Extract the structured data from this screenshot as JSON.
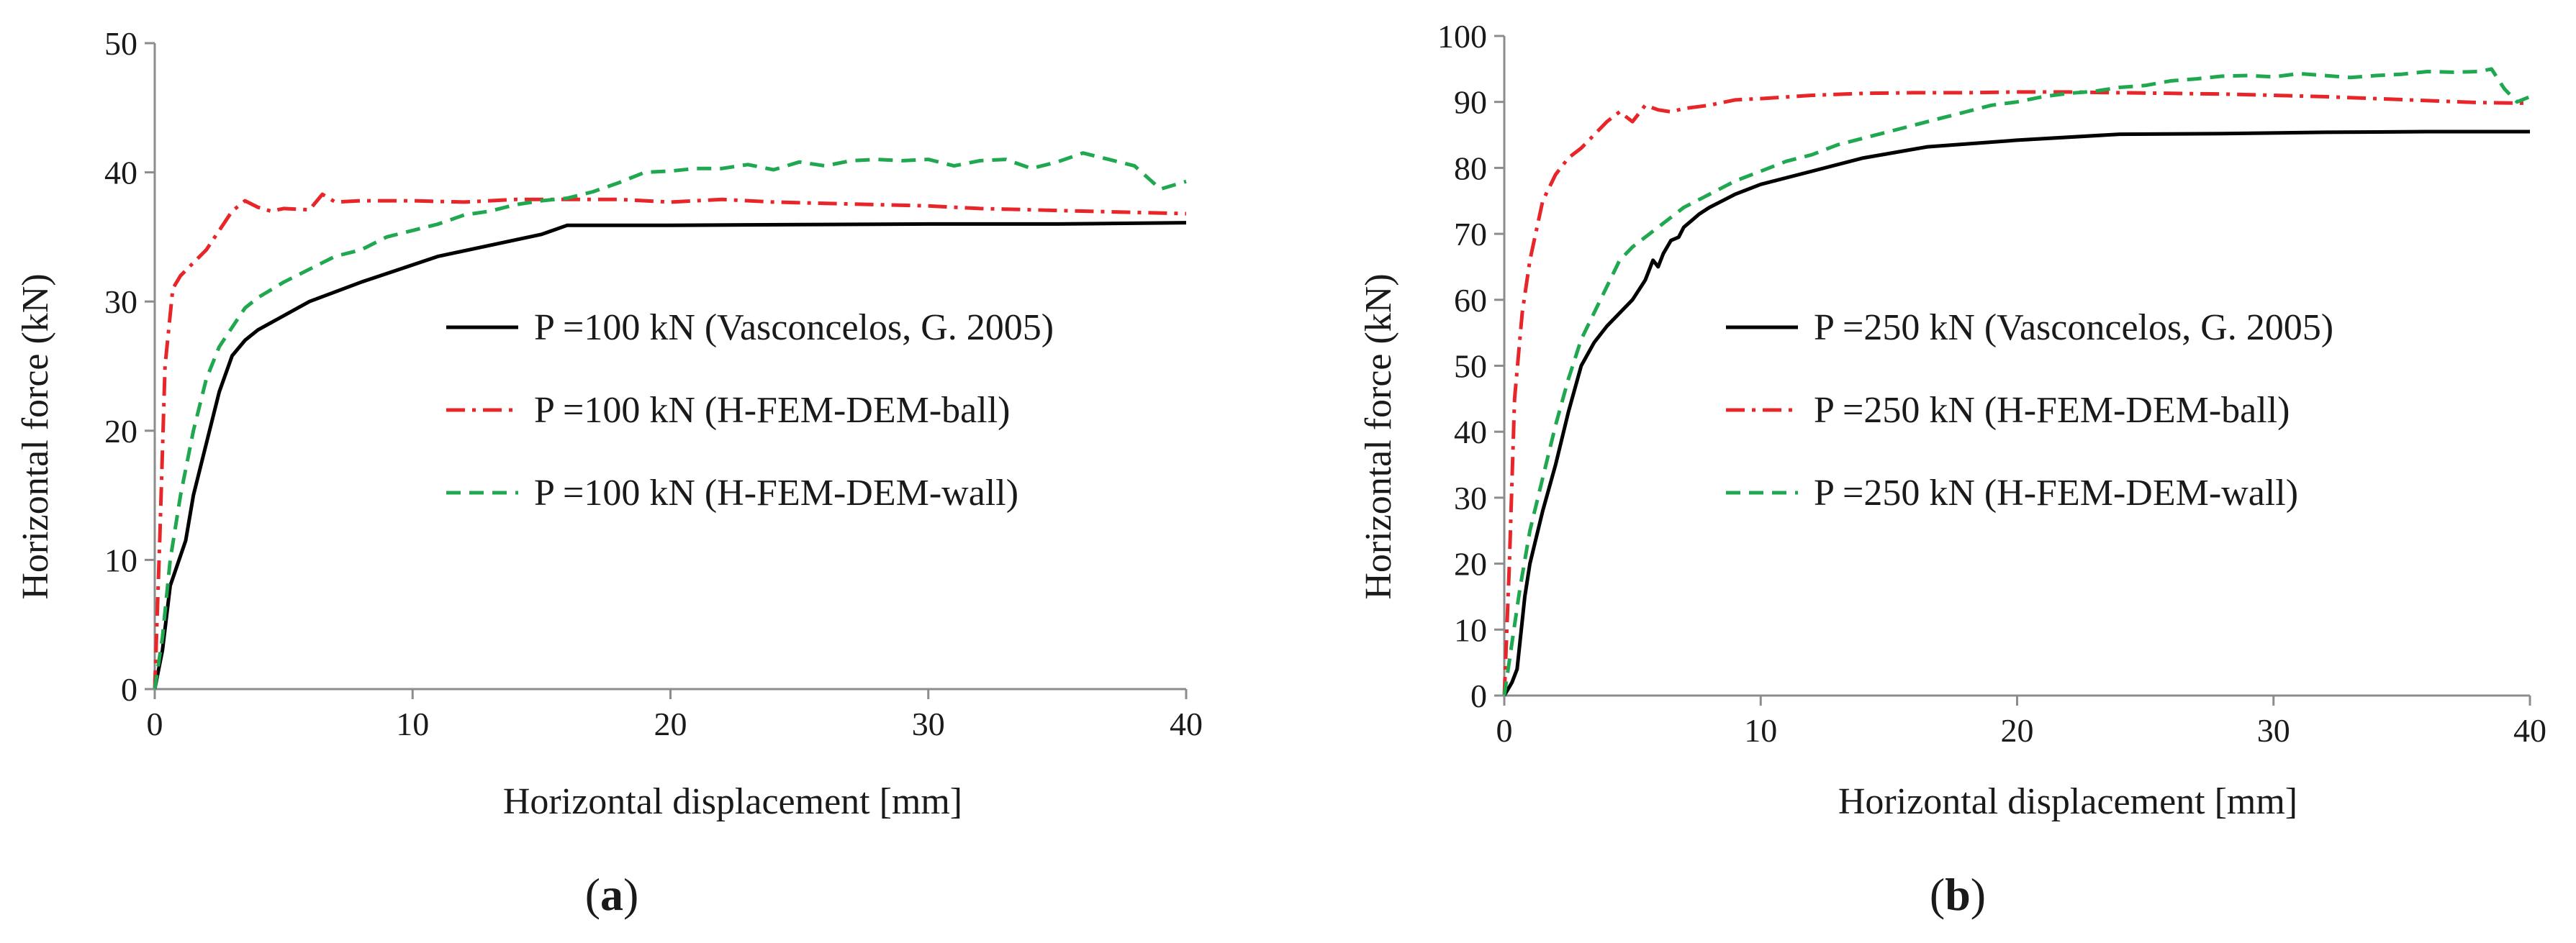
{
  "figure": {
    "panel_labels": [
      "(a)",
      "(b)"
    ]
  },
  "chart_data": [
    {
      "type": "line",
      "panel": "a",
      "xlabel": "Horizontal displacement [mm]",
      "ylabel": "Horizontal force (kN)",
      "xlim": [
        0,
        40
      ],
      "ylim": [
        0,
        50
      ],
      "xticks": [
        0,
        10,
        20,
        30,
        40
      ],
      "yticks": [
        0,
        10,
        20,
        30,
        40,
        50
      ],
      "legend_position": "center-right",
      "series": [
        {
          "name": "P =100 kN (Vasconcelos, G. 2005)",
          "color": "#000000",
          "style": "solid",
          "x": [
            0,
            0.3,
            0.6,
            1.2,
            1.5,
            2,
            2.5,
            3,
            3.5,
            4,
            6,
            8,
            11,
            15,
            16,
            20,
            25,
            30,
            35,
            40
          ],
          "y": [
            0,
            3,
            8,
            11.5,
            15,
            19,
            23,
            25.8,
            27,
            27.8,
            30,
            31.5,
            33.5,
            35.2,
            35.9,
            35.9,
            35.95,
            36,
            36,
            36.1
          ]
        },
        {
          "name": "P =100 kN (H-FEM-DEM-ball)",
          "color": "#e8262a",
          "style": "dashdot",
          "x": [
            0,
            0.2,
            0.4,
            0.7,
            1,
            1.5,
            2,
            2.5,
            3,
            3.5,
            4,
            4.5,
            5,
            6,
            6.5,
            7,
            8,
            10,
            12,
            14,
            16,
            18,
            20,
            22,
            24,
            26,
            28,
            30,
            32,
            34,
            36,
            38,
            40
          ],
          "y": [
            0,
            12,
            25,
            31,
            32,
            33,
            34,
            35.5,
            37,
            37.8,
            37.3,
            37,
            37.2,
            37.1,
            38.3,
            37.7,
            37.8,
            37.8,
            37.7,
            37.9,
            37.9,
            37.9,
            37.7,
            37.9,
            37.7,
            37.6,
            37.5,
            37.4,
            37.2,
            37.1,
            37,
            36.9,
            36.8
          ]
        },
        {
          "name": "P =100 kN (H-FEM-DEM-wall)",
          "color": "#1fa84f",
          "style": "dashed",
          "x": [
            0,
            0.3,
            0.6,
            1,
            1.5,
            2,
            2.5,
            3,
            3.5,
            4,
            5,
            6,
            7,
            8,
            9,
            10,
            11,
            12,
            13,
            14,
            15,
            16,
            17,
            18,
            19,
            20,
            21,
            22,
            23,
            24,
            25,
            26,
            27,
            28,
            29,
            30,
            31,
            32,
            33,
            34,
            35,
            36,
            37,
            38,
            39,
            40
          ],
          "y": [
            0,
            4,
            10,
            15,
            20,
            24,
            26.5,
            28,
            29.5,
            30.3,
            31.5,
            32.5,
            33.5,
            34,
            35,
            35.5,
            36,
            36.7,
            37,
            37.5,
            37.8,
            38,
            38.5,
            39.2,
            40,
            40.1,
            40.3,
            40.3,
            40.6,
            40.2,
            40.8,
            40.5,
            40.9,
            41,
            40.9,
            41,
            40.5,
            40.9,
            41,
            40.3,
            40.8,
            41.5,
            41,
            40.5,
            38.7,
            39.3
          ]
        }
      ]
    },
    {
      "type": "line",
      "panel": "b",
      "xlabel": "Horizontal displacement [mm]",
      "ylabel": "Horizontal force (kN)",
      "xlim": [
        0,
        40
      ],
      "ylim": [
        0,
        100
      ],
      "xticks": [
        0,
        10,
        20,
        30,
        40
      ],
      "yticks": [
        0,
        10,
        20,
        30,
        40,
        50,
        60,
        70,
        80,
        90,
        100
      ],
      "legend_position": "center-right",
      "series": [
        {
          "name": "P =250 kN (Vasconcelos, G. 2005)",
          "color": "#000000",
          "style": "solid",
          "x": [
            0,
            0.3,
            0.5,
            0.8,
            1,
            1.5,
            2,
            2.5,
            3,
            3.5,
            4,
            5,
            5.5,
            5.8,
            6,
            6.2,
            6.5,
            6.8,
            7,
            7.3,
            7.6,
            8,
            8.5,
            9,
            10,
            12,
            14,
            16.5,
            20,
            24,
            28,
            32,
            36,
            40
          ],
          "y": [
            0,
            2,
            4,
            15,
            20,
            28,
            35,
            43,
            50,
            53.5,
            56,
            60,
            63,
            66,
            65,
            67,
            69,
            69.5,
            71,
            72,
            73,
            74,
            75,
            76,
            77.5,
            79.5,
            81.5,
            83.2,
            84.2,
            85.1,
            85.2,
            85.4,
            85.5,
            85.5
          ]
        },
        {
          "name": "P =250 kN (H-FEM-DEM-ball)",
          "color": "#e8262a",
          "style": "dashdot",
          "x": [
            0,
            0.2,
            0.4,
            0.7,
            1,
            1.5,
            2,
            2.5,
            3,
            3.5,
            4,
            4.5,
            5,
            5.5,
            6,
            6.5,
            7,
            8,
            9,
            10,
            12,
            14,
            16,
            18,
            20,
            22,
            24,
            26,
            28,
            30,
            32,
            34,
            36,
            38,
            40
          ],
          "y": [
            0,
            20,
            45,
            58,
            66,
            75,
            79,
            81.5,
            83,
            85,
            87,
            88.5,
            87,
            89.5,
            88.8,
            88.5,
            89,
            89.5,
            90.3,
            90.5,
            91,
            91.3,
            91.4,
            91.4,
            91.5,
            91.5,
            91.4,
            91.3,
            91.2,
            91,
            90.8,
            90.5,
            90.2,
            89.9,
            89.8
          ]
        },
        {
          "name": "P =250 kN (H-FEM-DEM-wall)",
          "color": "#1fa84f",
          "style": "dashed",
          "x": [
            0,
            0.3,
            0.6,
            1,
            1.5,
            2,
            2.5,
            3,
            3.5,
            4,
            4.5,
            5,
            6,
            7,
            8,
            9,
            10,
            11,
            12,
            13,
            14,
            15,
            16,
            17,
            18,
            19,
            20,
            21,
            22,
            23,
            24,
            25,
            26,
            27,
            28,
            29,
            30,
            31,
            32,
            33,
            34,
            35,
            36,
            37,
            38,
            38.5,
            39,
            39.5,
            40
          ],
          "y": [
            0,
            8,
            16,
            25,
            33,
            41,
            48,
            54,
            58,
            62,
            66,
            68,
            71,
            74,
            76,
            78,
            79.5,
            81,
            82,
            83.5,
            84.5,
            85.5,
            86.5,
            87.5,
            88.5,
            89.5,
            90,
            90.8,
            91.3,
            91.6,
            92.2,
            92.5,
            93.2,
            93.5,
            93.9,
            94,
            93.8,
            94.3,
            94,
            93.7,
            94,
            94.2,
            94.6,
            94.5,
            94.6,
            95,
            92,
            90,
            90.8
          ]
        }
      ]
    }
  ]
}
